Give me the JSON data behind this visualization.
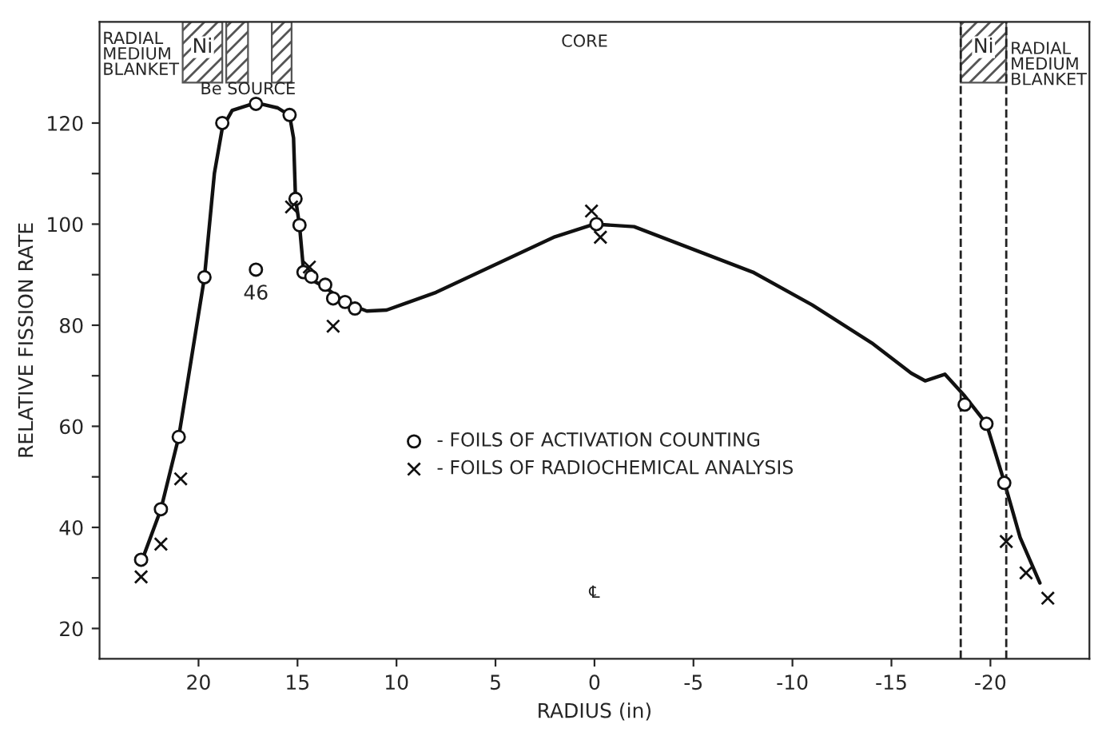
{
  "chart_data": {
    "type": "scatter",
    "xlabel": "RADIUS (in)",
    "ylabel": "RELATIVE FISSION RATE",
    "xlim": [
      25,
      -25
    ],
    "ylim": [
      14,
      140
    ],
    "xticks": [
      20,
      15,
      10,
      5,
      0,
      -5,
      -10,
      -15,
      -20
    ],
    "yticks": [
      20,
      {
        "value": 30,
        "label": null
      },
      40,
      {
        "value": 50,
        "label": null
      },
      60,
      {
        "value": 70,
        "label": null
      },
      80,
      {
        "value": 90,
        "label": null
      },
      100,
      {
        "value": 110,
        "label": null
      },
      120
    ],
    "grid": false,
    "legend": "center",
    "series": [
      {
        "type": "line",
        "color": "#111111",
        "marker": "none",
        "line_style": "solid",
        "x": [
          22.9,
          21.9,
          21.0,
          20.5,
          19.7,
          19.2,
          18.8,
          18.3,
          17.1,
          16.0,
          15.4,
          15.2,
          15.1,
          14.9,
          14.7,
          14.3,
          13.6,
          12.6,
          11.5,
          10.5,
          8,
          5,
          2,
          0,
          -2,
          -5,
          -8,
          -11,
          -14,
          -16,
          -16.7,
          -17.7,
          -18.7,
          -19.8,
          -20.7,
          -21.5,
          -22.5
        ],
        "values": [
          33,
          43.6,
          57.9,
          70,
          89.5,
          110,
          119,
          122.5,
          124,
          123,
          121.5,
          117,
          105,
          99.8,
          91,
          89,
          87.5,
          84.5,
          82.8,
          83,
          86.5,
          92,
          97.5,
          100,
          99.5,
          95,
          90.5,
          84,
          76.5,
          70.5,
          69,
          70.3,
          66,
          60.5,
          49,
          38,
          29
        ]
      },
      {
        "name": "- FOILS OF ACTIVATION COUNTING",
        "color": "#111111",
        "marker": "circle",
        "x": [
          22.9,
          21.9,
          21.0,
          19.7,
          18.8,
          17.1,
          15.4,
          15.1,
          14.9,
          14.7,
          14.3,
          13.6,
          13.2,
          12.6,
          12.1,
          17.1,
          -0.1,
          -18.7,
          -19.8,
          -20.7
        ],
        "values": [
          33.6,
          43.6,
          57.9,
          89.5,
          120,
          123.8,
          121.6,
          105,
          99.8,
          90.5,
          89.6,
          88,
          85.3,
          84.6,
          83.3,
          91,
          100,
          64.3,
          60.5,
          48.8
        ]
      },
      {
        "name": "- FOILS OF RADIOCHEMICAL ANALYSIS",
        "color": "#111111",
        "marker": "cross",
        "x": [
          22.9,
          21.9,
          20.9,
          15.3,
          14.4,
          13.2,
          0.15,
          -0.3,
          -20.8,
          -21.8,
          -22.9
        ],
        "values": [
          30.2,
          36.7,
          49.6,
          103.4,
          91.5,
          79.8,
          102.6,
          97.4,
          37.2,
          31,
          26
        ]
      }
    ],
    "bands": [
      {
        "axis": "x",
        "from": 20.8,
        "to": 18.8,
        "label": "Ni",
        "color": "#555555"
      },
      {
        "axis": "x",
        "from": 18.6,
        "to": 17.5,
        "label": null,
        "color": "#555555"
      },
      {
        "axis": "x",
        "from": 16.3,
        "to": 15.3,
        "label": null,
        "color": "#555555"
      },
      {
        "axis": "x",
        "from": -18.5,
        "to": -20.8,
        "label": "Ni",
        "color": "#555555"
      }
    ],
    "ref_lines": [
      {
        "axis": "x",
        "value": -18.5,
        "label": null,
        "line_style": "dashed",
        "color": "#222222"
      },
      {
        "axis": "x",
        "value": -20.8,
        "label": null,
        "line_style": "dashed",
        "color": "#222222"
      }
    ],
    "annotations": [
      "RADIAL\nMEDIUM\nBLANKET",
      "Be SOURCE",
      "CORE",
      "RADIAL\nMEDIUM\nBLANKET",
      {
        "text": "46",
        "x": 17.1,
        "y": 91
      },
      "℄"
    ]
  }
}
